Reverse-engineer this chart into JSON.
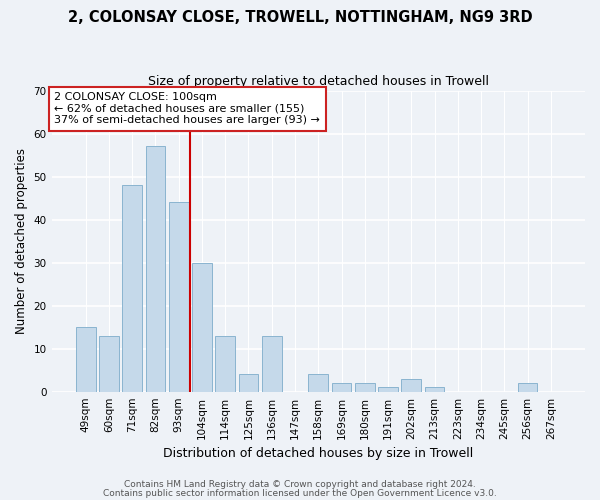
{
  "title": "2, COLONSAY CLOSE, TROWELL, NOTTINGHAM, NG9 3RD",
  "subtitle": "Size of property relative to detached houses in Trowell",
  "xlabel": "Distribution of detached houses by size in Trowell",
  "ylabel": "Number of detached properties",
  "bar_color": "#c5d9ea",
  "bar_edge_color": "#8ab4d0",
  "background_color": "#eef2f7",
  "categories": [
    "49sqm",
    "60sqm",
    "71sqm",
    "82sqm",
    "93sqm",
    "104sqm",
    "114sqm",
    "125sqm",
    "136sqm",
    "147sqm",
    "158sqm",
    "169sqm",
    "180sqm",
    "191sqm",
    "202sqm",
    "213sqm",
    "223sqm",
    "234sqm",
    "245sqm",
    "256sqm",
    "267sqm"
  ],
  "values": [
    15,
    13,
    48,
    57,
    44,
    30,
    13,
    4,
    13,
    0,
    4,
    2,
    2,
    1,
    3,
    1,
    0,
    0,
    0,
    2,
    0
  ],
  "ylim": [
    0,
    70
  ],
  "yticks": [
    0,
    10,
    20,
    30,
    40,
    50,
    60,
    70
  ],
  "vline_x": 4.5,
  "vline_color": "#cc0000",
  "annotation_line1": "2 COLONSAY CLOSE: 100sqm",
  "annotation_line2": "← 62% of detached houses are smaller (155)",
  "annotation_line3": "37% of semi-detached houses are larger (93) →",
  "footer1": "Contains HM Land Registry data © Crown copyright and database right 2024.",
  "footer2": "Contains public sector information licensed under the Open Government Licence v3.0."
}
